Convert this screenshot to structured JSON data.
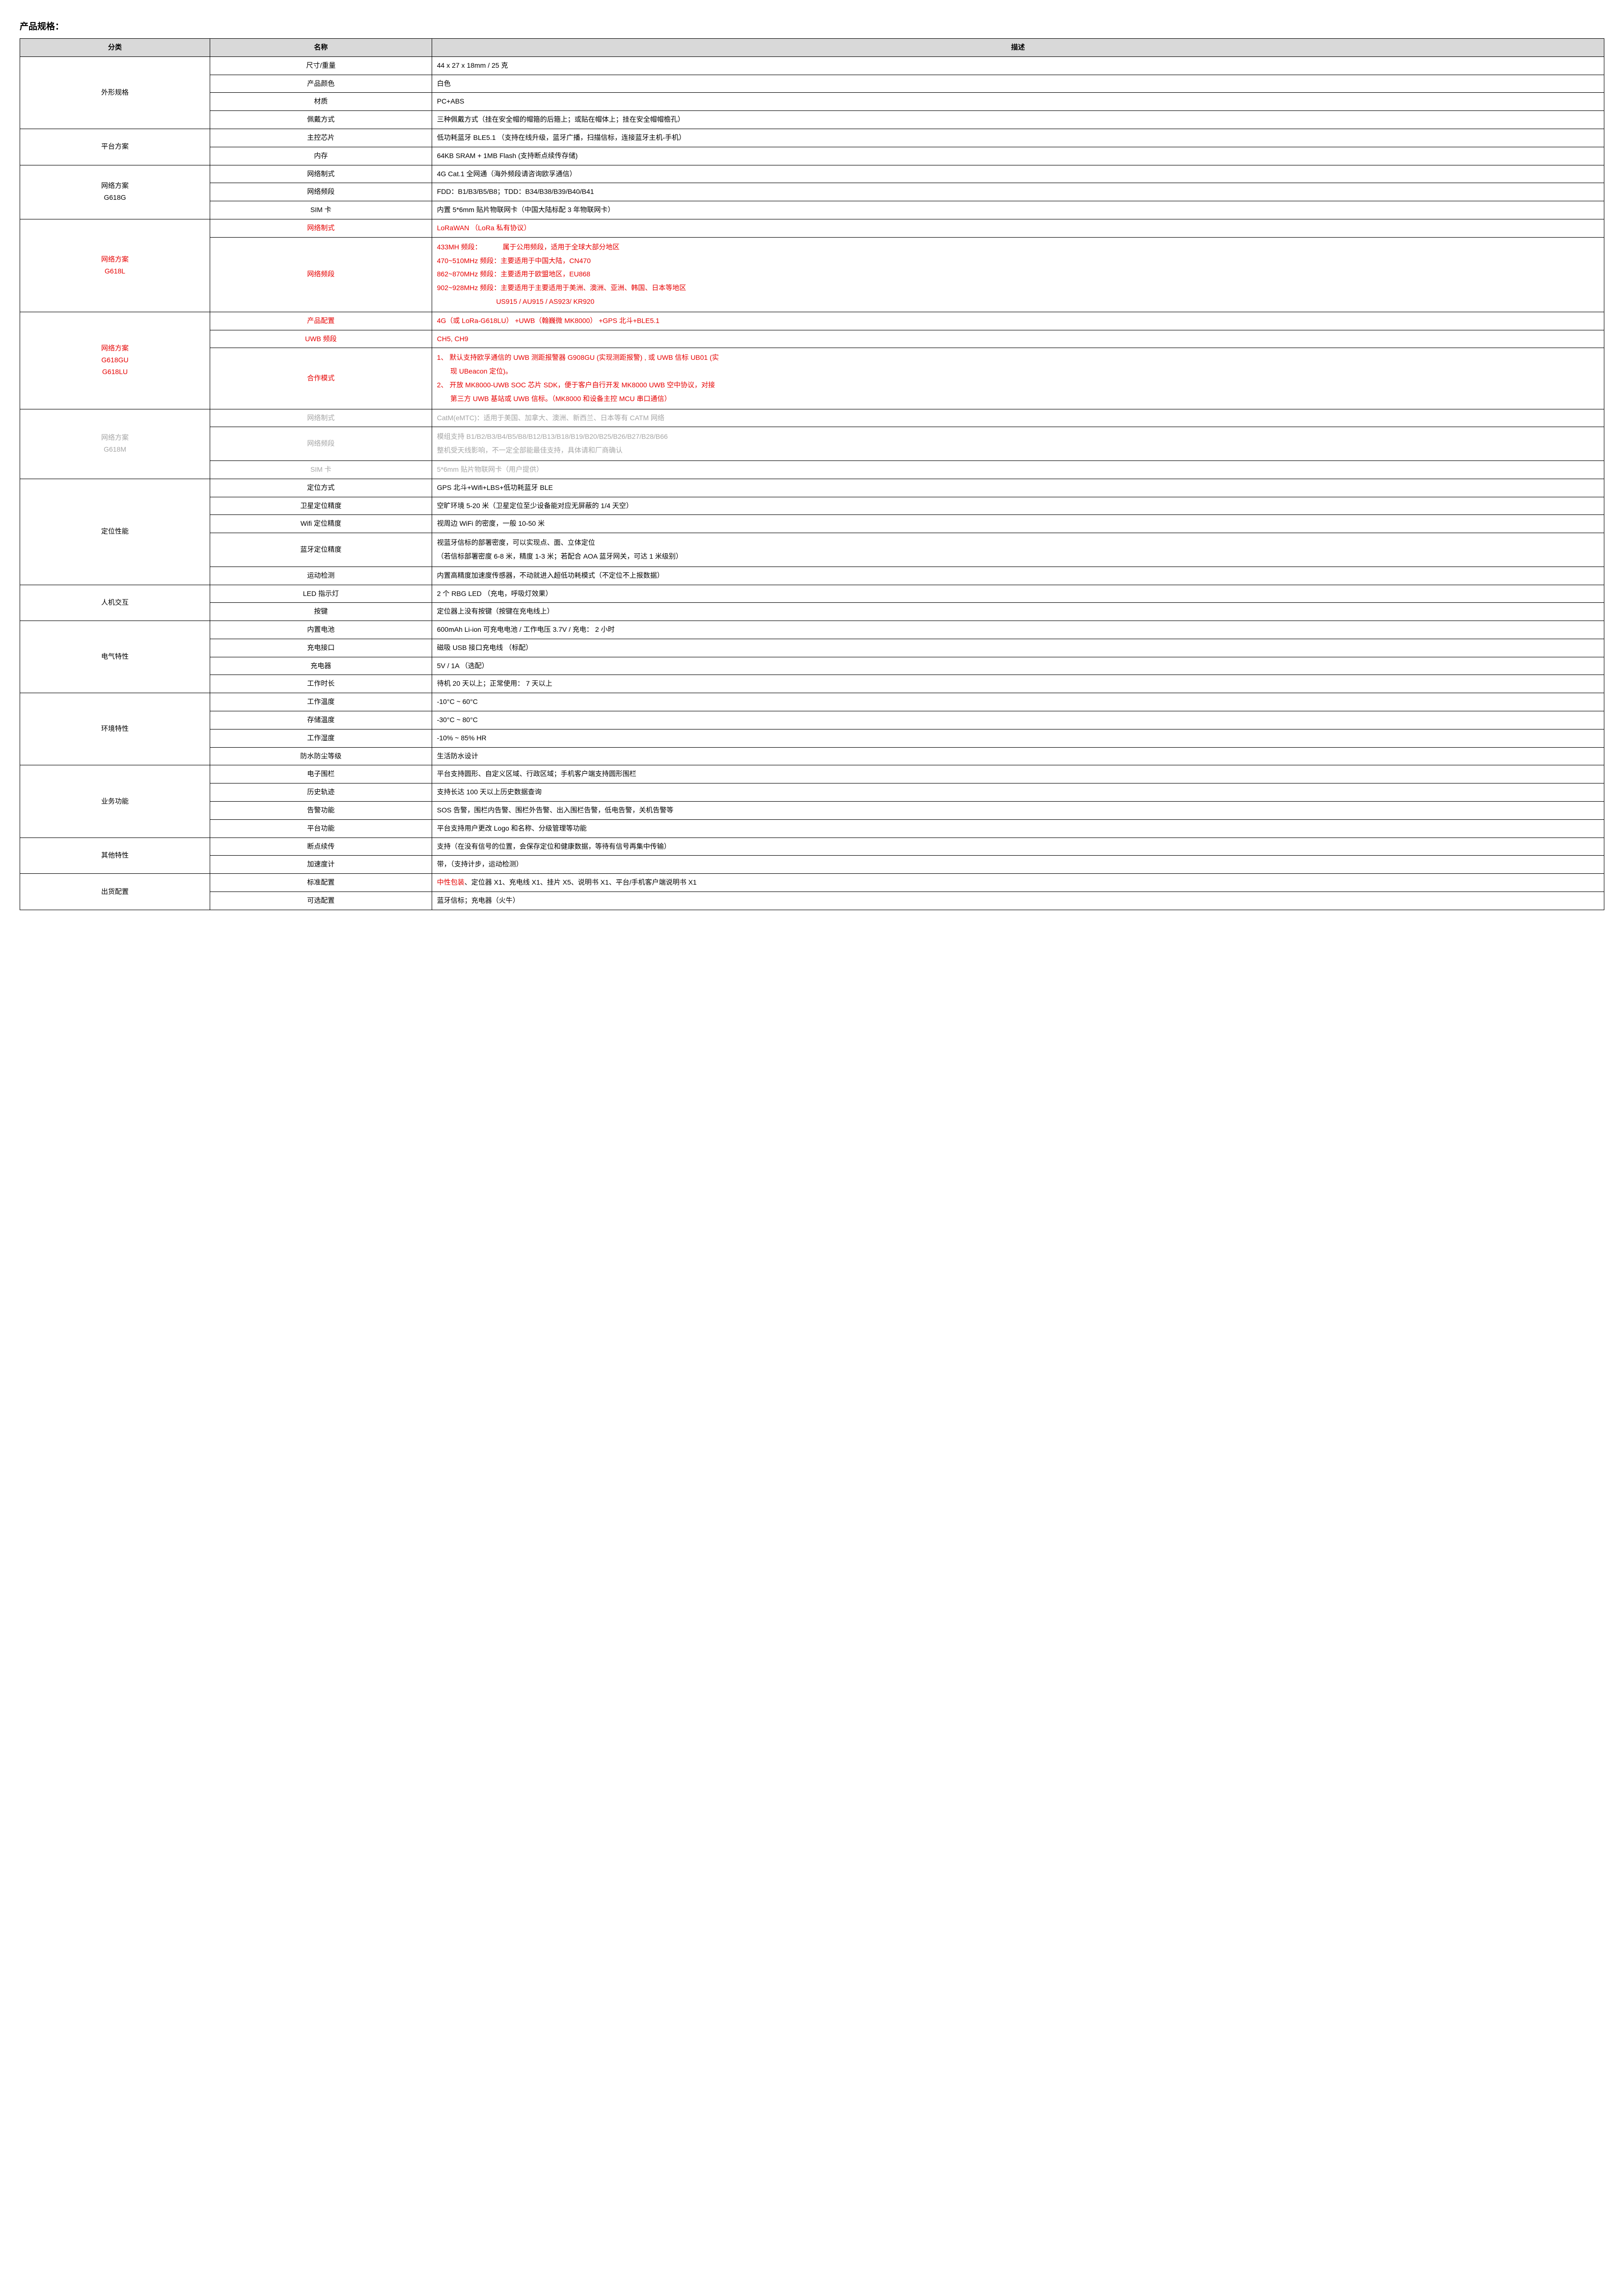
{
  "title": "产品规格：",
  "headers": {
    "category": "分类",
    "name": "名称",
    "desc": "描述"
  },
  "colors": {
    "red": "#e60000",
    "gray": "#a6a6a6",
    "header_bg": "#d9d9d9",
    "border": "#000000"
  },
  "groups": [
    {
      "category": "外形规格",
      "rows": [
        {
          "name": "尺寸/重量",
          "desc": "44 x 27 x 18mm / 25 克"
        },
        {
          "name": "产品颜色",
          "desc": "白色"
        },
        {
          "name": "材质",
          "desc": "PC+ABS"
        },
        {
          "name": "佩戴方式",
          "desc": "三种佩戴方式（挂在安全帽的帽箍的后箍上；或贴在帽体上；挂在安全帽帽檐孔）"
        }
      ]
    },
    {
      "category": "平台方案",
      "rows": [
        {
          "name": "主控芯片",
          "desc": "低功耗蓝牙 BLE5.1   （支持在线升级，蓝牙广播，扫描信标，连接蓝牙主机-手机）"
        },
        {
          "name": "内存",
          "desc": "64KB SRAM + 1MB Flash (支持断点续传存储)"
        }
      ]
    },
    {
      "category": "网络方案\nG618G",
      "rows": [
        {
          "name": "网络制式",
          "desc": "4G Cat.1  全网通（海外频段请咨询欧孚通信）"
        },
        {
          "name": "网络频段",
          "desc": "FDD：B1/B3/B5/B8；TDD：B34/B38/B39/B40/B41"
        },
        {
          "name": "SIM 卡",
          "desc": "内置 5*6mm 贴片物联网卡（中国大陆标配  3 年物联网卡）"
        }
      ]
    },
    {
      "category": "网络方案\nG618L",
      "category_color": "red",
      "rows": [
        {
          "name": "网络制式",
          "name_color": "red",
          "desc": "LoRaWAN   （LoRa 私有协议）",
          "desc_color": "red"
        },
        {
          "name": "网络频段",
          "name_color": "red",
          "desc_lines": [
            "433MH 频段：           属于公用频段，适用于全球大部分地区",
            "470~510MHz 频段：主要适用于中国大陆，CN470",
            "862~870MHz 频段：主要适用于欧盟地区，EU868",
            "902~928MHz 频段：主要适用于主要适用于美洲、澳洲、亚洲、韩国、日本等地区",
            "                               US915 / AU915 / AS923/ KR920"
          ],
          "desc_color": "red"
        }
      ]
    },
    {
      "category": "网络方案\nG618GU\nG618LU",
      "category_color": "red",
      "rows": [
        {
          "name": "产品配置",
          "name_color": "red",
          "desc": "4G（或 LoRa-G618LU） +UWB（翰巍微 MK8000）  +GPS 北斗+BLE5.1",
          "desc_color": "red"
        },
        {
          "name": "UWB 频段",
          "name_color": "red",
          "desc": "CH5, CH9",
          "desc_color": "red"
        },
        {
          "name": "合作模式",
          "name_color": "red",
          "desc_lines": [
            "1、 默认支持欧孚通信的 UWB 测距报警器 G908GU (实现测距报警) , 或 UWB 信标 UB01 (实",
            "       现 UBeacon 定位)。",
            "2、 开放 MK8000-UWB SOC 芯片 SDK，便于客户自行开发 MK8000 UWB 空中协议，对接",
            "       第三方 UWB 基站或 UWB 信标。（MK8000 和设备主控 MCU 串口通信）"
          ],
          "desc_color": "red"
        }
      ]
    },
    {
      "category": "网络方案\nG618M",
      "category_color": "gray",
      "rows": [
        {
          "name": "网络制式",
          "name_color": "gray",
          "desc": "CatM(eMTC)：适用于美国、加拿大、澳洲、新西兰、日本等有 CATM 网络",
          "desc_color": "gray"
        },
        {
          "name": "网络频段",
          "name_color": "gray",
          "desc_lines": [
            "模组支持 B1/B2/B3/B4/B5/B8/B12/B13/B18/B19/B20/B25/B26/B27/B28/B66",
            "整机受天线影响，不一定全部能最佳支持，具体请和厂商确认"
          ],
          "desc_color": "gray"
        },
        {
          "name": "SIM 卡",
          "name_color": "gray",
          "desc": "5*6mm 贴片物联网卡（用户提供）",
          "desc_color": "gray"
        }
      ]
    },
    {
      "category": "定位性能",
      "rows": [
        {
          "name": "定位方式",
          "desc": "GPS 北斗+Wifi+LBS+低功耗蓝牙 BLE"
        },
        {
          "name": "卫星定位精度",
          "desc": "空旷环境 5-20 米（卫星定位至少设备能对应无屏蔽的 1/4 天空）"
        },
        {
          "name": "Wifi 定位精度",
          "desc": "视周边 WiFi 的密度，一般 10-50 米"
        },
        {
          "name": "蓝牙定位精度",
          "desc_lines": [
            "视蓝牙信标的部署密度，可以实现点、面、立体定位",
            "（若信标部署密度 6-8 米，精度 1-3 米；若配合 AOA 蓝牙网关，可达 1 米级别）"
          ]
        },
        {
          "name": "运动检测",
          "desc": "内置高精度加速度传感器，不动就进入超低功耗模式（不定位不上报数据）"
        }
      ]
    },
    {
      "category": "人机交互",
      "rows": [
        {
          "name": "LED 指示灯",
          "desc": "2 个 RBG LED      （充电，呼吸灯效果）"
        },
        {
          "name": "按键",
          "desc": "定位器上没有按键（按键在充电线上）"
        }
      ]
    },
    {
      "category": "电气特性",
      "rows": [
        {
          "name": "内置电池",
          "desc": "600mAh Li-ion 可充电电池  /  工作电压 3.7V /  充电： 2 小时"
        },
        {
          "name": "充电接口",
          "desc": "磁吸 USB 接口充电线   （标配）"
        },
        {
          "name": "充电器",
          "desc": "5V / 1A   （选配）"
        },
        {
          "name": "工作时长",
          "desc": "待机 20 天以上；正常使用： 7 天以上"
        }
      ]
    },
    {
      "category": "环境特性",
      "rows": [
        {
          "name": "工作温度",
          "desc": "-10°C ~ 60°C"
        },
        {
          "name": "存储温度",
          "desc": "-30°C ~ 80°C"
        },
        {
          "name": "工作湿度",
          "desc": "-10% ~ 85% HR"
        },
        {
          "name": "防水防尘等级",
          "desc": "生活防水设计"
        }
      ]
    },
    {
      "category": "业务功能",
      "rows": [
        {
          "name": "电子围栏",
          "desc": "平台支持圆形、自定义区域、行政区域；手机客户端支持圆形围栏"
        },
        {
          "name": "历史轨迹",
          "desc": "支持长达 100 天以上历史数据查询"
        },
        {
          "name": "告警功能",
          "desc": "SOS 告警，围栏内告警、围栏外告警、出入围栏告警，低电告警，关机告警等"
        },
        {
          "name": "平台功能",
          "desc": "平台支持用户更改 Logo 和名称、分级管理等功能"
        }
      ]
    },
    {
      "category": "其他特性",
      "rows": [
        {
          "name": "断点续传",
          "desc": "支持（在没有信号的位置，会保存定位和健康数据，等待有信号再集中传输）"
        },
        {
          "name": "加速度计",
          "desc": "带，（支持计步，运动检测）"
        }
      ]
    },
    {
      "category": "出货配置",
      "rows": [
        {
          "name": "标准配置",
          "desc_mixed": [
            {
              "text": "中性包装",
              "color": "red"
            },
            {
              "text": "、定位器 X1、充电线 X1、挂片 X5、说明书 X1、平台/手机客户端说明书 X1"
            }
          ]
        },
        {
          "name": "可选配置",
          "desc": "蓝牙信标；充电器（火牛）"
        }
      ]
    }
  ]
}
